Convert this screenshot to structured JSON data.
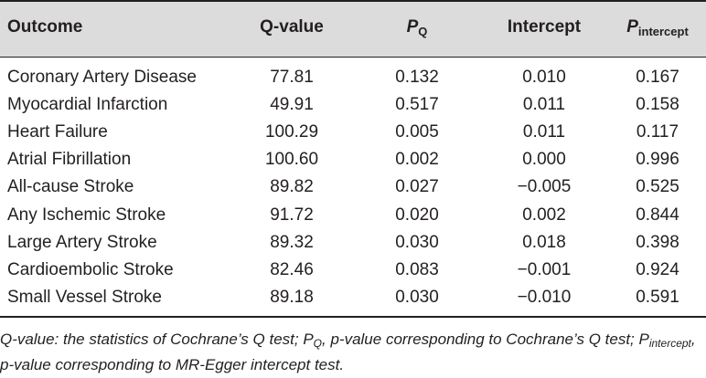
{
  "table": {
    "headers": {
      "outcome": "Outcome",
      "q_value": "Q-value",
      "p_q_main": "P",
      "p_q_sub": "Q",
      "intercept": "Intercept",
      "p_int_main": "P",
      "p_int_sub": "intercept"
    },
    "rows": [
      {
        "outcome": "Coronary Artery Disease",
        "q": "77.81",
        "pq": "0.132",
        "intercept": "0.010",
        "pint": "0.167"
      },
      {
        "outcome": "Myocardial Infarction",
        "q": "49.91",
        "pq": "0.517",
        "intercept": "0.011",
        "pint": "0.158"
      },
      {
        "outcome": "Heart Failure",
        "q": "100.29",
        "pq": "0.005",
        "intercept": "0.011",
        "pint": "0.117"
      },
      {
        "outcome": "Atrial Fibrillation",
        "q": "100.60",
        "pq": "0.002",
        "intercept": "0.000",
        "pint": "0.996"
      },
      {
        "outcome": "All-cause Stroke",
        "q": "89.82",
        "pq": "0.027",
        "intercept": "−0.005",
        "pint": "0.525"
      },
      {
        "outcome": "Any Ischemic Stroke",
        "q": "91.72",
        "pq": "0.020",
        "intercept": "0.002",
        "pint": "0.844"
      },
      {
        "outcome": "Large Artery Stroke",
        "q": "89.32",
        "pq": "0.030",
        "intercept": "0.018",
        "pint": "0.398"
      },
      {
        "outcome": "Cardioembolic Stroke",
        "q": "82.46",
        "pq": "0.083",
        "intercept": "−0.001",
        "pint": "0.924"
      },
      {
        "outcome": "Small Vessel Stroke",
        "q": "89.18",
        "pq": "0.030",
        "intercept": "−0.010",
        "pint": "0.591"
      }
    ]
  },
  "footnote": {
    "part1": "Q-value: the statistics of Cochrane’s Q test; P",
    "sub1": "Q",
    "part2": ", p-value corresponding to Cochrane’s Q test; P",
    "sub2": "intercept",
    "part3": ", p-value corresponding to MR-Egger intercept test."
  }
}
